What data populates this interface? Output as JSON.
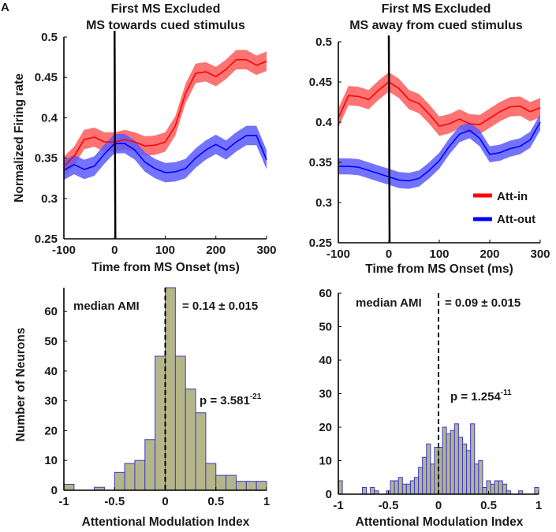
{
  "panel_label": "A",
  "colors": {
    "att_in": "#ff0000",
    "att_out": "#0000ff",
    "att_in_band": "#ff5a5a",
    "att_out_band": "#5a5aff",
    "bar_fill": "#b5b58a",
    "bar_edge": "#3a3ad0"
  },
  "chart_data": [
    {
      "type": "line",
      "title": [
        "First MS Excluded",
        "MS towards cued stimulus"
      ],
      "xlabel": "Time from MS Onset (ms)",
      "ylabel": "Normalized Firing rate",
      "xlim": [
        -100,
        300
      ],
      "ylim": [
        0.25,
        0.5
      ],
      "xticks": [
        "-100",
        "0",
        "100",
        "200",
        "300"
      ],
      "yticks": [
        "0.25",
        "0.3",
        "0.35",
        "0.4",
        "0.45",
        "0.5"
      ],
      "vline_x": 0,
      "x": [
        -100,
        -80,
        -60,
        -40,
        -20,
        0,
        20,
        40,
        60,
        80,
        100,
        120,
        140,
        160,
        180,
        200,
        220,
        240,
        260,
        280,
        300
      ],
      "series": [
        {
          "name": "Att-in",
          "sem": 0.012,
          "values": [
            0.34,
            0.352,
            0.373,
            0.376,
            0.37,
            0.37,
            0.373,
            0.37,
            0.365,
            0.366,
            0.37,
            0.39,
            0.43,
            0.455,
            0.457,
            0.451,
            0.46,
            0.472,
            0.472,
            0.465,
            0.47
          ]
        },
        {
          "name": "Att-out",
          "sem": 0.012,
          "values": [
            0.335,
            0.342,
            0.336,
            0.34,
            0.355,
            0.368,
            0.368,
            0.36,
            0.345,
            0.337,
            0.332,
            0.333,
            0.337,
            0.35,
            0.36,
            0.367,
            0.36,
            0.37,
            0.378,
            0.378,
            0.348
          ]
        }
      ]
    },
    {
      "type": "line",
      "title": [
        "First MS Excluded",
        "MS away from cued stimulus"
      ],
      "xlabel": "Time from MS Onset (ms)",
      "ylabel": "",
      "xlim": [
        -100,
        300
      ],
      "ylim": [
        0.25,
        0.5
      ],
      "xticks": [
        "-100",
        "0",
        "100",
        "200",
        "300"
      ],
      "yticks": [
        "0.25",
        "0.3",
        "0.35",
        "0.4",
        "0.45",
        "0.5"
      ],
      "vline_x": 0,
      "legend": {
        "position": "bottom-right",
        "entries": [
          "Att-in",
          "Att-out"
        ]
      },
      "x": [
        -100,
        -80,
        -60,
        -40,
        -20,
        0,
        20,
        40,
        60,
        80,
        100,
        120,
        140,
        160,
        180,
        200,
        220,
        240,
        260,
        280,
        300
      ],
      "series": [
        {
          "name": "Att-in",
          "sem": 0.012,
          "values": [
            0.405,
            0.433,
            0.432,
            0.428,
            0.44,
            0.45,
            0.442,
            0.428,
            0.423,
            0.41,
            0.395,
            0.398,
            0.404,
            0.398,
            0.397,
            0.405,
            0.413,
            0.419,
            0.42,
            0.413,
            0.418
          ]
        },
        {
          "name": "Att-out",
          "sem": 0.01,
          "values": [
            0.345,
            0.345,
            0.344,
            0.34,
            0.336,
            0.332,
            0.328,
            0.327,
            0.33,
            0.34,
            0.352,
            0.37,
            0.385,
            0.39,
            0.38,
            0.36,
            0.362,
            0.367,
            0.37,
            0.378,
            0.4
          ]
        }
      ]
    },
    {
      "type": "bar",
      "xlabel": "Attentional Modulation Index",
      "ylabel": "Number of Neurons",
      "xlim": [
        -1,
        1
      ],
      "ylim": [
        0,
        68
      ],
      "xticks": [
        "-1",
        "-0.5",
        "0",
        "0.5",
        "1"
      ],
      "yticks": [
        "0",
        "10",
        "20",
        "30",
        "40",
        "50",
        "60"
      ],
      "bin_start": -1,
      "bin_width": 0.1,
      "values": [
        2,
        0,
        0,
        1,
        0,
        6,
        9,
        10,
        17,
        45,
        68,
        45,
        34,
        26,
        9,
        5,
        5,
        3,
        3,
        3
      ],
      "median_line_x": 0,
      "annotations": {
        "median_label": "median AMI",
        "median_value": "= 0.14 ± 0.015",
        "p_label": "p = 3.581",
        "p_exp": "-21"
      }
    },
    {
      "type": "bar",
      "xlabel": "Attentional Modulation Index",
      "ylabel": "",
      "xlim": [
        -1,
        1
      ],
      "ylim": [
        0,
        60
      ],
      "xticks": [
        "-1",
        "-0.5",
        "0",
        "0.5",
        "1"
      ],
      "yticks": [
        "0",
        "10",
        "20",
        "30",
        "40",
        "50",
        "60"
      ],
      "bin_start": -1,
      "bin_width": 0.04,
      "values": [
        4,
        0,
        0,
        0,
        0,
        0,
        2,
        0,
        2,
        1,
        0,
        0,
        1,
        4,
        4,
        5,
        3,
        3,
        4,
        5,
        8,
        11,
        15,
        9,
        14,
        14,
        20,
        18,
        19,
        21,
        17,
        15,
        13,
        21,
        9,
        10,
        2,
        4,
        3,
        4,
        4,
        3,
        1,
        0,
        0,
        1,
        0,
        0,
        0,
        2
      ],
      "median_line_x": 0,
      "annotations": {
        "median_label": "median AMI",
        "median_value": "= 0.09 ± 0.015",
        "p_label": "p = 1.254",
        "p_exp": "-11"
      }
    }
  ]
}
